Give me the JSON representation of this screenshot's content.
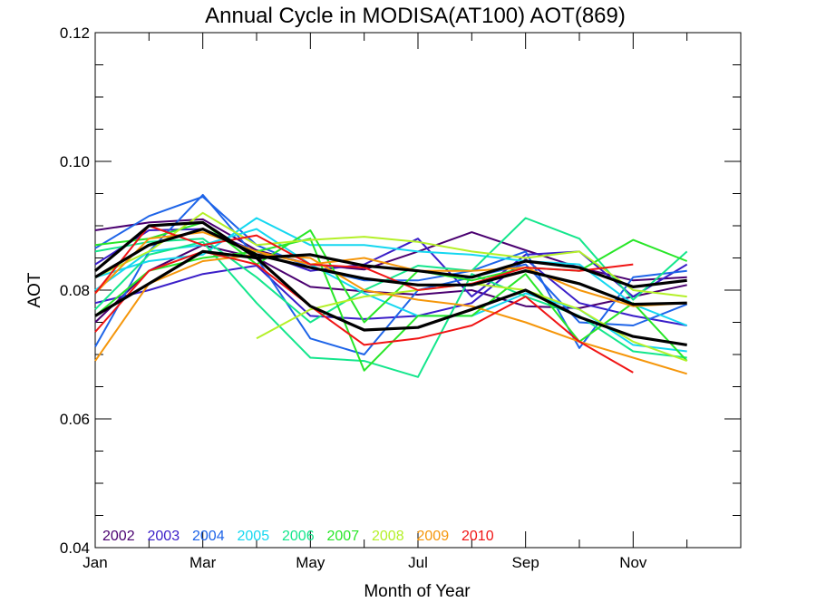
{
  "chart_data": {
    "type": "line",
    "title": "Annual Cycle in MODISA(AT100) AOT(869)",
    "xlabel": "Month of Year",
    "ylabel": "AOT",
    "xlim": [
      1,
      13
    ],
    "ylim": [
      0.04,
      0.12
    ],
    "x_ticks": [
      {
        "x": 1,
        "label": "Jan"
      },
      {
        "x": 3,
        "label": "Mar"
      },
      {
        "x": 5,
        "label": "May"
      },
      {
        "x": 7,
        "label": "Jul"
      },
      {
        "x": 9,
        "label": "Sep"
      },
      {
        "x": 11,
        "label": "Nov"
      }
    ],
    "y_ticks": [
      {
        "y": 0.04,
        "label": "0.04"
      },
      {
        "y": 0.06,
        "label": "0.06"
      },
      {
        "y": 0.08,
        "label": "0.08"
      },
      {
        "y": 0.1,
        "label": "0.10"
      },
      {
        "y": 0.12,
        "label": "0.12"
      }
    ],
    "x_minor_ticks": [
      2,
      4,
      6,
      8,
      10,
      12
    ],
    "y_minor_ticks": [
      0.045,
      0.05,
      0.055,
      0.065,
      0.07,
      0.075,
      0.085,
      0.09,
      0.095,
      0.105,
      0.11,
      0.115
    ],
    "grid": false,
    "legend_position": "bottom-left",
    "series": [
      {
        "name": "2002",
        "color": "#4a0070",
        "lines": [
          {
            "x": [
              1,
              2,
              3,
              4,
              5,
              6,
              7,
              8,
              9,
              10,
              11,
              12
            ],
            "y": [
              0.0893,
              0.0905,
              0.091,
              0.0862,
              0.084,
              0.0832,
              0.086,
              0.089,
              0.0862,
              0.0835,
              0.0815,
              0.082
            ]
          },
          {
            "x": [
              1,
              2,
              3,
              4,
              5,
              6,
              7,
              8,
              9,
              10,
              11,
              12
            ],
            "y": [
              0.075,
              0.083,
              0.087,
              0.085,
              0.0805,
              0.0798,
              0.0793,
              0.08,
              0.0775,
              0.0772,
              0.079,
              0.0808
            ]
          }
        ]
      },
      {
        "name": "2003",
        "color": "#3a1ec8",
        "lines": [
          {
            "x": [
              1,
              2,
              3,
              4,
              5,
              6,
              7,
              8,
              9,
              10,
              11,
              12
            ],
            "y": [
              0.084,
              0.0893,
              0.0895,
              0.086,
              0.083,
              0.084,
              0.088,
              0.079,
              0.0855,
              0.086,
              0.079,
              0.084
            ]
          },
          {
            "x": [
              1,
              2,
              3,
              4,
              5,
              6,
              7,
              8,
              9,
              10,
              11,
              12
            ],
            "y": [
              0.078,
              0.08,
              0.0825,
              0.0838,
              0.076,
              0.0755,
              0.076,
              0.078,
              0.0848,
              0.078,
              0.076,
              0.0745
            ]
          }
        ]
      },
      {
        "name": "2004",
        "color": "#1e64e8",
        "lines": [
          {
            "x": [
              1,
              2,
              3,
              4,
              5,
              6,
              7,
              8,
              9,
              10,
              11,
              12
            ],
            "y": [
              0.0865,
              0.0915,
              0.0945,
              0.087,
              0.0835,
              0.0815,
              0.0815,
              0.083,
              0.086,
              0.071,
              0.082,
              0.083
            ]
          },
          {
            "x": [
              1,
              2,
              3,
              4,
              5,
              6,
              7,
              8,
              9,
              10,
              11,
              12
            ],
            "y": [
              0.0712,
              0.086,
              0.0948,
              0.085,
              0.0725,
              0.07,
              0.08,
              0.082,
              0.084,
              0.075,
              0.0745,
              0.0778
            ]
          }
        ]
      },
      {
        "name": "2005",
        "color": "#14d7f0",
        "lines": [
          {
            "x": [
              1,
              2,
              3,
              4,
              5,
              6,
              7,
              8,
              9,
              10,
              11,
              12
            ],
            "y": [
              0.082,
              0.0845,
              0.0855,
              0.0912,
              0.087,
              0.087,
              0.086,
              0.0855,
              0.0845,
              0.084,
              0.0778,
              0.0745
            ]
          },
          {
            "x": [
              1,
              2,
              3,
              4,
              5,
              6,
              7,
              8,
              9,
              10,
              11,
              12
            ],
            "y": [
              0.08,
              0.086,
              0.087,
              0.0895,
              0.084,
              0.0795,
              0.076,
              0.076,
              0.0795,
              0.077,
              0.0715,
              0.0705
            ]
          }
        ]
      },
      {
        "name": "2006",
        "color": "#14e68c",
        "lines": [
          {
            "x": [
              1,
              2,
              3,
              4,
              5,
              6,
              7,
              8,
              9,
              10,
              11,
              12
            ],
            "y": [
              0.086,
              0.0875,
              0.088,
              0.082,
              0.075,
              0.08,
              0.0838,
              0.083,
              0.0912,
              0.088,
              0.0785,
              0.086
            ]
          },
          {
            "x": [
              1,
              2,
              3,
              4,
              5,
              6,
              7,
              8,
              9,
              10,
              11,
              12
            ],
            "y": [
              0.077,
              0.0855,
              0.0875,
              0.078,
              0.0695,
              0.069,
              0.0665,
              0.0825,
              0.079,
              0.076,
              0.0705,
              0.0695
            ]
          }
        ]
      },
      {
        "name": "2007",
        "color": "#28e628",
        "lines": [
          {
            "x": [
              1,
              2,
              3,
              4,
              5,
              6,
              7,
              8,
              9,
              10,
              11,
              12
            ],
            "y": [
              0.087,
              0.088,
              0.0905,
              0.084,
              0.0893,
              0.075,
              0.083,
              0.0815,
              0.0835,
              0.083,
              0.0878,
              0.0845
            ]
          },
          {
            "x": [
              1,
              2,
              3,
              4,
              5,
              6,
              7,
              8,
              9,
              10,
              11,
              12
            ],
            "y": [
              0.076,
              0.083,
              0.085,
              0.086,
              0.088,
              0.0675,
              0.076,
              0.076,
              0.0825,
              0.072,
              0.078,
              0.069
            ]
          }
        ]
      },
      {
        "name": "2008",
        "color": "#b4f028",
        "lines": [
          {
            "x": [
              1,
              2,
              3,
              4,
              5,
              6,
              7,
              8,
              9,
              10,
              11,
              12
            ],
            "y": [
              0.082,
              0.086,
              0.092,
              0.087,
              0.0878,
              0.0883,
              0.0875,
              0.086,
              0.085,
              0.086,
              0.08,
              0.079
            ]
          },
          {
            "x": [
              4,
              5,
              6,
              7,
              8,
              9,
              10,
              11,
              12
            ],
            "y": [
              0.0725,
              0.077,
              0.079,
              0.08,
              0.081,
              0.08,
              0.077,
              0.072,
              0.069
            ]
          }
        ]
      },
      {
        "name": "2009",
        "color": "#f5960a",
        "lines": [
          {
            "x": [
              1,
              2,
              3,
              4,
              5,
              6,
              7,
              8,
              9,
              10,
              11,
              12
            ],
            "y": [
              0.0795,
              0.088,
              0.089,
              0.086,
              0.084,
              0.085,
              0.083,
              0.083,
              0.0835,
              0.08,
              0.0775,
              0.078
            ]
          },
          {
            "x": [
              1,
              2,
              3,
              4,
              5,
              6,
              7,
              8,
              9,
              10,
              11,
              12
            ],
            "y": [
              0.069,
              0.081,
              0.0845,
              0.0855,
              0.085,
              0.08,
              0.0785,
              0.0775,
              0.075,
              0.072,
              0.0695,
              0.067
            ]
          }
        ]
      },
      {
        "name": "2010",
        "color": "#f01414",
        "lines": [
          {
            "x": [
              1,
              2,
              3,
              4,
              5,
              6,
              7,
              8,
              9,
              10,
              11
            ],
            "y": [
              0.0795,
              0.09,
              0.087,
              0.0885,
              0.084,
              0.0835,
              0.08,
              0.081,
              0.0835,
              0.083,
              0.084
            ]
          },
          {
            "x": [
              1,
              2,
              3,
              4,
              5,
              6,
              7,
              8,
              9,
              10,
              11
            ],
            "y": [
              0.0735,
              0.083,
              0.086,
              0.084,
              0.0775,
              0.0715,
              0.0725,
              0.0745,
              0.079,
              0.072,
              0.0672
            ]
          }
        ]
      }
    ],
    "mean_series": {
      "color": "#000000",
      "lines": [
        {
          "x": [
            1,
            2,
            3,
            4,
            5,
            6,
            7,
            8,
            9,
            10,
            11,
            12
          ],
          "y": [
            0.083,
            0.09,
            0.0905,
            0.085,
            0.0855,
            0.0838,
            0.083,
            0.082,
            0.0845,
            0.0835,
            0.0805,
            0.0815
          ]
        },
        {
          "x": [
            1,
            2,
            3,
            4,
            5,
            6,
            7,
            8,
            9,
            10,
            11,
            12
          ],
          "y": [
            0.082,
            0.087,
            0.0895,
            0.0855,
            0.0835,
            0.0818,
            0.0808,
            0.0808,
            0.083,
            0.081,
            0.0778,
            0.078
          ]
        },
        {
          "x": [
            1,
            2,
            3,
            4,
            5,
            6,
            7,
            8,
            9,
            10,
            11,
            12
          ],
          "y": [
            0.076,
            0.081,
            0.086,
            0.085,
            0.0775,
            0.0738,
            0.0742,
            0.077,
            0.08,
            0.0758,
            0.0728,
            0.0715
          ]
        }
      ]
    }
  }
}
